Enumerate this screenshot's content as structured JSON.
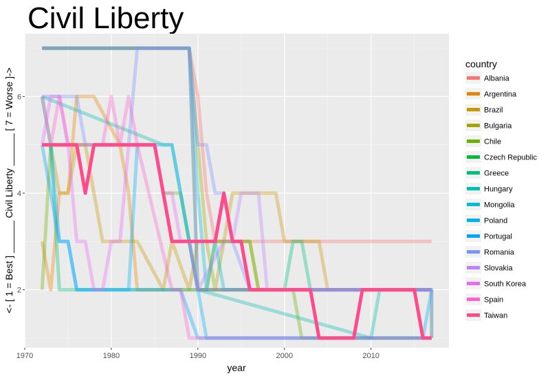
{
  "chart_data": {
    "type": "line",
    "title": "Civil Liberty",
    "xlabel": "year",
    "ylabel": "<- [ 1 = Best ] ______ Civil Liberty ______ [ 7 = Worse ]->",
    "xlim": [
      1970,
      2019
    ],
    "ylim": [
      0.8,
      7.3
    ],
    "x_ticks": [
      1970,
      1980,
      1990,
      2000,
      2010
    ],
    "y_ticks": [
      2,
      4,
      6
    ],
    "grid": true,
    "legend_position": "right",
    "legend_title": "country",
    "series": [
      {
        "name": "Albania",
        "color": "#F8766D",
        "opacity": 0.35,
        "points": [
          [
            1972,
            7
          ],
          [
            1989,
            7
          ],
          [
            1990,
            6
          ],
          [
            1991,
            4
          ],
          [
            1992,
            3
          ],
          [
            2017,
            3
          ]
        ]
      },
      {
        "name": "Argentina",
        "color": "#E58700",
        "opacity": 0.35,
        "points": [
          [
            1972,
            3
          ],
          [
            1973,
            2
          ],
          [
            1974,
            4
          ],
          [
            1975,
            4
          ],
          [
            1976,
            6
          ],
          [
            1977,
            6
          ],
          [
            1978,
            6
          ],
          [
            1981,
            5
          ],
          [
            1982,
            4
          ],
          [
            1983,
            2
          ],
          [
            2017,
            2
          ]
        ]
      },
      {
        "name": "Brazil",
        "color": "#C99800",
        "opacity": 0.35,
        "points": [
          [
            1972,
            5
          ],
          [
            1973,
            5
          ],
          [
            1974,
            4
          ],
          [
            1975,
            4
          ],
          [
            1976,
            5
          ],
          [
            1977,
            5
          ],
          [
            1978,
            4
          ],
          [
            1979,
            3
          ],
          [
            1982,
            3
          ],
          [
            1983,
            3
          ],
          [
            1986,
            2
          ],
          [
            1987,
            3
          ],
          [
            1989,
            2
          ],
          [
            1990,
            3
          ],
          [
            1993,
            3
          ],
          [
            1994,
            4
          ],
          [
            1999,
            4
          ],
          [
            2000,
            3
          ],
          [
            2004,
            3
          ],
          [
            2005,
            2
          ],
          [
            2017,
            2
          ]
        ]
      },
      {
        "name": "Bulgaria",
        "color": "#A3A500",
        "opacity": 0.35,
        "points": [
          [
            1972,
            7
          ],
          [
            1989,
            7
          ],
          [
            1990,
            5
          ],
          [
            1991,
            3
          ],
          [
            1992,
            2
          ],
          [
            1993,
            3
          ],
          [
            1994,
            3
          ],
          [
            1995,
            3
          ],
          [
            1996,
            3
          ],
          [
            1997,
            2
          ],
          [
            2017,
            2
          ]
        ]
      },
      {
        "name": "Chile",
        "color": "#6BB100",
        "opacity": 0.35,
        "points": [
          [
            1972,
            2
          ],
          [
            1973,
            5
          ],
          [
            1974,
            5
          ],
          [
            1975,
            5
          ],
          [
            1976,
            5
          ],
          [
            1985,
            5
          ],
          [
            1986,
            4
          ],
          [
            1988,
            4
          ],
          [
            1989,
            3
          ],
          [
            1990,
            2
          ],
          [
            1991,
            2
          ],
          [
            1992,
            3
          ],
          [
            1996,
            3
          ],
          [
            1997,
            2
          ],
          [
            2001,
            2
          ],
          [
            2002,
            1
          ],
          [
            2017,
            1
          ]
        ]
      },
      {
        "name": "Czech Republic",
        "color": "#00BA38",
        "opacity": 0.35,
        "points": [
          [
            1972,
            7
          ],
          [
            1989,
            7
          ],
          [
            1990,
            2
          ],
          [
            2017,
            2
          ],
          [
            2017,
            1
          ]
        ]
      },
      {
        "name": "Greece",
        "color": "#00BF7D",
        "opacity": 0.35,
        "points": [
          [
            1972,
            6
          ],
          [
            1973,
            5
          ],
          [
            1974,
            2
          ],
          [
            1975,
            2
          ],
          [
            2000,
            2
          ],
          [
            2001,
            3
          ],
          [
            2002,
            3
          ],
          [
            2003,
            2
          ],
          [
            2017,
            2
          ]
        ]
      },
      {
        "name": "Hungary",
        "color": "#00C0AF",
        "opacity": 0.35,
        "points": [
          [
            1972,
            6
          ],
          [
            1986,
            5
          ],
          [
            1987,
            5
          ],
          [
            1988,
            4
          ],
          [
            1989,
            3
          ],
          [
            1990,
            2
          ],
          [
            2010,
            1
          ],
          [
            2011,
            2
          ],
          [
            2017,
            2
          ]
        ]
      },
      {
        "name": "Mongolia",
        "color": "#00BCD8",
        "opacity": 0.35,
        "points": [
          [
            1972,
            7
          ],
          [
            1989,
            7
          ],
          [
            1990,
            4
          ],
          [
            1991,
            2
          ],
          [
            1992,
            3
          ],
          [
            1993,
            2
          ],
          [
            1996,
            2
          ],
          [
            2017,
            2
          ]
        ]
      },
      {
        "name": "Poland",
        "color": "#00B0F6",
        "opacity": 0.35,
        "points": [
          [
            1972,
            5
          ],
          [
            1973,
            5
          ],
          [
            1974,
            3
          ],
          [
            1975,
            3
          ],
          [
            1976,
            2
          ],
          [
            1977,
            2
          ],
          [
            1982,
            2
          ],
          [
            1983,
            5
          ],
          [
            1984,
            5
          ],
          [
            1986,
            5
          ],
          [
            1987,
            5
          ],
          [
            1988,
            4
          ],
          [
            1989,
            3
          ],
          [
            1990,
            2
          ],
          [
            1991,
            1
          ],
          [
            1992,
            1
          ],
          [
            2016,
            1
          ],
          [
            2017,
            2
          ]
        ]
      },
      {
        "name": "Portugal",
        "color": "#00A5FF",
        "opacity": 0.35,
        "points": [
          [
            1972,
            5
          ],
          [
            1974,
            3
          ],
          [
            1975,
            3
          ],
          [
            1976,
            2
          ],
          [
            1977,
            2
          ],
          [
            1983,
            2
          ],
          [
            1988,
            2
          ],
          [
            1990,
            1
          ],
          [
            2017,
            1
          ]
        ]
      },
      {
        "name": "Romania",
        "color": "#7B93FF",
        "opacity": 0.35,
        "points": [
          [
            1972,
            6
          ],
          [
            1976,
            6
          ],
          [
            1977,
            5
          ],
          [
            1982,
            5
          ],
          [
            1983,
            7
          ],
          [
            1989,
            7
          ],
          [
            1990,
            5
          ],
          [
            1991,
            5
          ],
          [
            1992,
            4
          ],
          [
            1993,
            4
          ],
          [
            1994,
            3
          ],
          [
            1996,
            2
          ],
          [
            2017,
            2
          ]
        ]
      },
      {
        "name": "Slovakia",
        "color": "#B983FF",
        "opacity": 0.35,
        "points": [
          [
            1972,
            7
          ],
          [
            1989,
            7
          ],
          [
            1990,
            2
          ],
          [
            1993,
            3
          ],
          [
            1994,
            3
          ],
          [
            1995,
            4
          ],
          [
            1996,
            4
          ],
          [
            1997,
            4
          ],
          [
            1998,
            2
          ],
          [
            2017,
            2
          ],
          [
            2017,
            1
          ]
        ]
      },
      {
        "name": "South Korea",
        "color": "#E76BF3",
        "opacity": 0.35,
        "points": [
          [
            1972,
            5
          ],
          [
            1973,
            6
          ],
          [
            1974,
            6
          ],
          [
            1975,
            5
          ],
          [
            1976,
            3
          ],
          [
            1977,
            3
          ],
          [
            1978,
            2
          ],
          [
            1979,
            2
          ],
          [
            1980,
            3
          ],
          [
            1981,
            3
          ],
          [
            1982,
            5
          ],
          [
            1983,
            5
          ],
          [
            1984,
            5
          ],
          [
            1985,
            5
          ],
          [
            1986,
            4
          ],
          [
            1987,
            4
          ],
          [
            1988,
            3
          ],
          [
            1989,
            3
          ],
          [
            1990,
            2
          ],
          [
            2004,
            2
          ],
          [
            2005,
            2
          ],
          [
            2017,
            2
          ]
        ]
      },
      {
        "name": "Spain",
        "color": "#FD61D1",
        "opacity": 0.35,
        "points": [
          [
            1972,
            6
          ],
          [
            1973,
            5
          ],
          [
            1974,
            6
          ],
          [
            1975,
            5
          ],
          [
            1976,
            5
          ],
          [
            1977,
            5
          ],
          [
            1978,
            5
          ],
          [
            1979,
            5
          ],
          [
            1980,
            6
          ],
          [
            1981,
            5
          ],
          [
            1982,
            6
          ],
          [
            1983,
            5
          ],
          [
            1987,
            2
          ],
          [
            1988,
            2
          ],
          [
            1989,
            1
          ],
          [
            1991,
            1
          ],
          [
            1992,
            1
          ],
          [
            2017,
            1
          ]
        ]
      },
      {
        "name": "Taiwan",
        "color": "#FF4B8C",
        "opacity": 1.0,
        "points": [
          [
            1972,
            5
          ],
          [
            1976,
            5
          ],
          [
            1977,
            4
          ],
          [
            1978,
            5
          ],
          [
            1985,
            5
          ],
          [
            1986,
            4
          ],
          [
            1987,
            3
          ],
          [
            1992,
            3
          ],
          [
            1993,
            4
          ],
          [
            1994,
            3
          ],
          [
            1995,
            3
          ],
          [
            1996,
            2
          ],
          [
            2002,
            2
          ],
          [
            2003,
            2
          ],
          [
            2004,
            1
          ],
          [
            2008,
            1
          ],
          [
            2009,
            2
          ],
          [
            2013,
            2
          ],
          [
            2014,
            2
          ],
          [
            2015,
            2
          ],
          [
            2016,
            1
          ],
          [
            2017,
            1
          ]
        ]
      }
    ]
  }
}
